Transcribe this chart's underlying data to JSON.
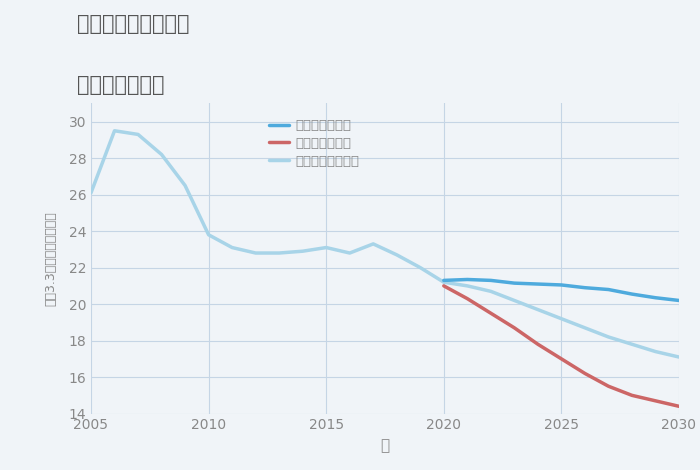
{
  "title_line1": "千葉県館山市高井の",
  "title_line2": "土地の価格推移",
  "xlabel": "年",
  "ylabel": "坪（3.3㎡）単価（万円）",
  "background_color": "#f0f4f8",
  "plot_background": "#f0f4f8",
  "grid_color": "#c5d5e5",
  "title_color": "#555555",
  "axis_color": "#888888",
  "good_scenario": {
    "label": "グッドシナリオ",
    "color": "#4eaadd",
    "years": [
      2020,
      2021,
      2022,
      2023,
      2024,
      2025,
      2026,
      2027,
      2028,
      2029,
      2030
    ],
    "values": [
      21.3,
      21.35,
      21.3,
      21.15,
      21.1,
      21.05,
      20.9,
      20.8,
      20.55,
      20.35,
      20.2
    ]
  },
  "bad_scenario": {
    "label": "バッドシナリオ",
    "color": "#cc6666",
    "years": [
      2020,
      2021,
      2022,
      2023,
      2024,
      2025,
      2026,
      2027,
      2028,
      2029,
      2030
    ],
    "values": [
      21.0,
      20.3,
      19.5,
      18.7,
      17.8,
      17.0,
      16.2,
      15.5,
      15.0,
      14.7,
      14.4
    ]
  },
  "normal_scenario": {
    "label": "ノーマルシナリオ",
    "color": "#a8d4e8",
    "years": [
      2005,
      2006,
      2007,
      2008,
      2009,
      2010,
      2011,
      2012,
      2013,
      2014,
      2015,
      2016,
      2017,
      2018,
      2019,
      2020,
      2021,
      2022,
      2023,
      2024,
      2025,
      2026,
      2027,
      2028,
      2029,
      2030
    ],
    "values": [
      26.1,
      29.5,
      29.3,
      28.2,
      26.5,
      23.8,
      23.1,
      22.8,
      22.8,
      22.9,
      23.1,
      22.8,
      23.3,
      22.7,
      22.0,
      21.2,
      21.0,
      20.7,
      20.2,
      19.7,
      19.2,
      18.7,
      18.2,
      17.8,
      17.4,
      17.1
    ]
  },
  "ylim": [
    14,
    31
  ],
  "xlim": [
    2005,
    2030
  ],
  "yticks": [
    14,
    16,
    18,
    20,
    22,
    24,
    26,
    28,
    30
  ],
  "xticks": [
    2005,
    2010,
    2015,
    2020,
    2025,
    2030
  ]
}
